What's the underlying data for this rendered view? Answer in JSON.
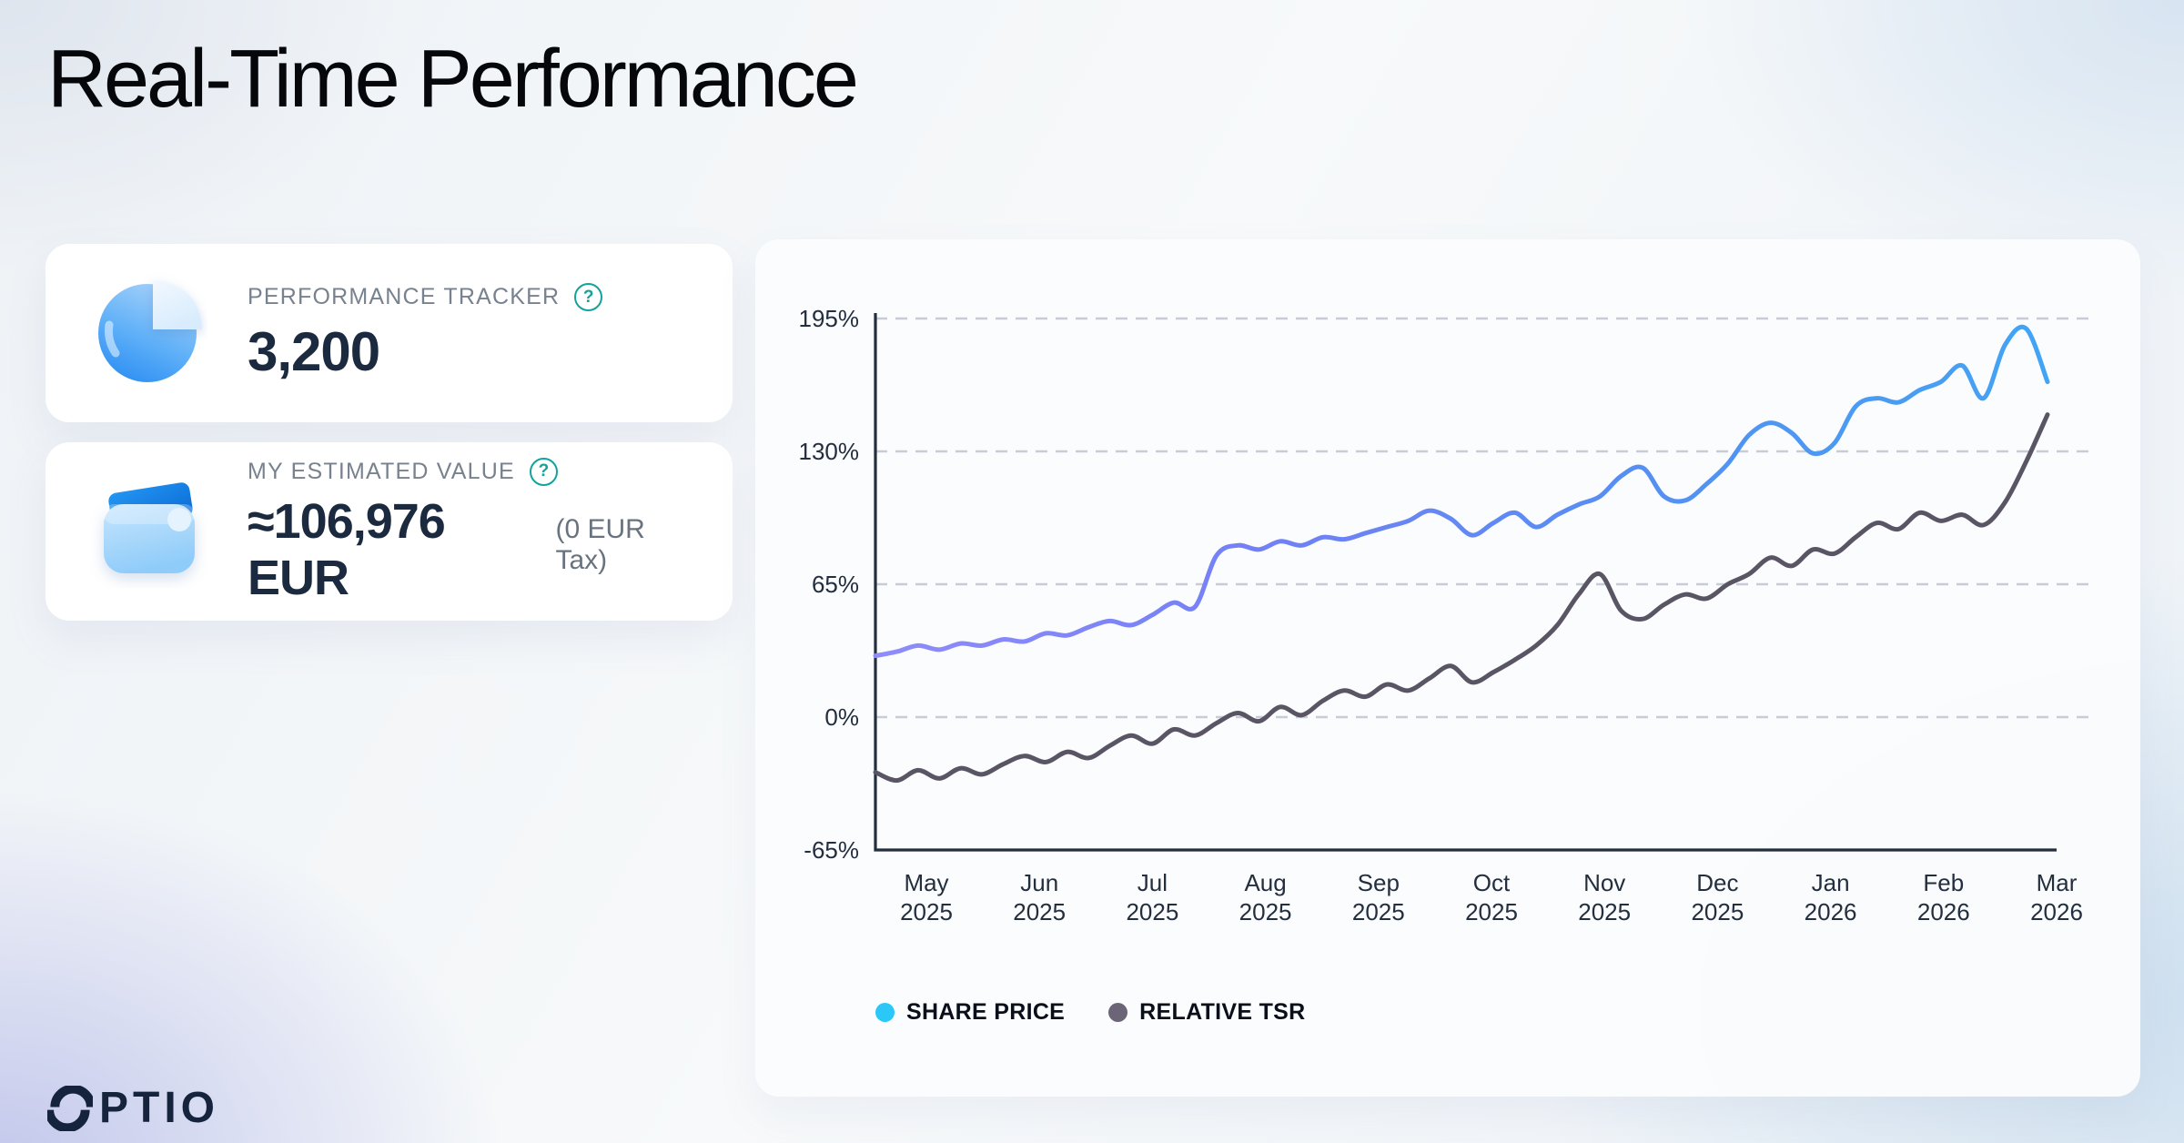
{
  "page": {
    "title": "Real-Time Performance"
  },
  "cards": {
    "performance_tracker": {
      "label": "PERFORMANCE TRACKER",
      "value": "3,200",
      "help_icon": "?"
    },
    "estimated_value": {
      "label": "MY ESTIMATED VALUE",
      "value": "≈106,976 EUR",
      "tax_note": "(0 EUR Tax)",
      "help_icon": "?"
    }
  },
  "logo": {
    "brand": "OPTIO",
    "text_part": "PTIO"
  },
  "colors": {
    "help_teal": "#12a39b",
    "value_navy": "#1b2a3e",
    "axis": "#232e3e",
    "grid": "#c8ccd6"
  },
  "chart_data": {
    "type": "line",
    "title": "",
    "xlabel": "",
    "ylabel": "",
    "ylim": [
      -65,
      195
    ],
    "grid": "horizontal-dashed",
    "legend_position": "bottom-left",
    "y_ticks": [
      {
        "label": "195%",
        "value": 195
      },
      {
        "label": "130%",
        "value": 130
      },
      {
        "label": "65%",
        "value": 65
      },
      {
        "label": "0%",
        "value": 0
      },
      {
        "label": "-65%",
        "value": -65
      }
    ],
    "x_ticks": [
      {
        "month": "May",
        "year": "2025"
      },
      {
        "month": "Jun",
        "year": "2025"
      },
      {
        "month": "Jul",
        "year": "2025"
      },
      {
        "month": "Aug",
        "year": "2025"
      },
      {
        "month": "Sep",
        "year": "2025"
      },
      {
        "month": "Oct",
        "year": "2025"
      },
      {
        "month": "Nov",
        "year": "2025"
      },
      {
        "month": "Dec",
        "year": "2025"
      },
      {
        "month": "Jan",
        "year": "2026"
      },
      {
        "month": "Feb",
        "year": "2026"
      },
      {
        "month": "Mar",
        "year": "2026"
      }
    ],
    "series": [
      {
        "name": "SHARE PRICE",
        "legend_dot_color": "#2bc7f6",
        "color": "#4ba0f2",
        "color_stops": [
          "#8f8cfa",
          "#7280f5",
          "#5490f2",
          "#42a4f4"
        ],
        "values": [
          30,
          32,
          35,
          33,
          36,
          35,
          38,
          37,
          41,
          40,
          44,
          47,
          45,
          50,
          56,
          54,
          79,
          84,
          82,
          86,
          84,
          88,
          87,
          90,
          93,
          96,
          101,
          97,
          89,
          95,
          100,
          93,
          99,
          104,
          108,
          118,
          122,
          108,
          106,
          114,
          124,
          138,
          144,
          139,
          129,
          134,
          152,
          156,
          154,
          160,
          164,
          172,
          156,
          182,
          190,
          164
        ]
      },
      {
        "name": "RELATIVE TSR",
        "legend_dot_color": "#6b6577",
        "color": "#5a5565",
        "color_stops": [
          "#5a5565",
          "#5a5565"
        ],
        "values": [
          -27,
          -31,
          -26,
          -30,
          -25,
          -28,
          -23,
          -19,
          -22,
          -17,
          -20,
          -14,
          -9,
          -13,
          -6,
          -9,
          -3,
          2,
          -2,
          5,
          1,
          8,
          13,
          10,
          16,
          13,
          19,
          25,
          17,
          22,
          28,
          35,
          45,
          60,
          70,
          52,
          48,
          55,
          60,
          58,
          65,
          70,
          78,
          74,
          82,
          80,
          88,
          95,
          92,
          100,
          96,
          99,
          94,
          105,
          125,
          148
        ]
      }
    ]
  }
}
